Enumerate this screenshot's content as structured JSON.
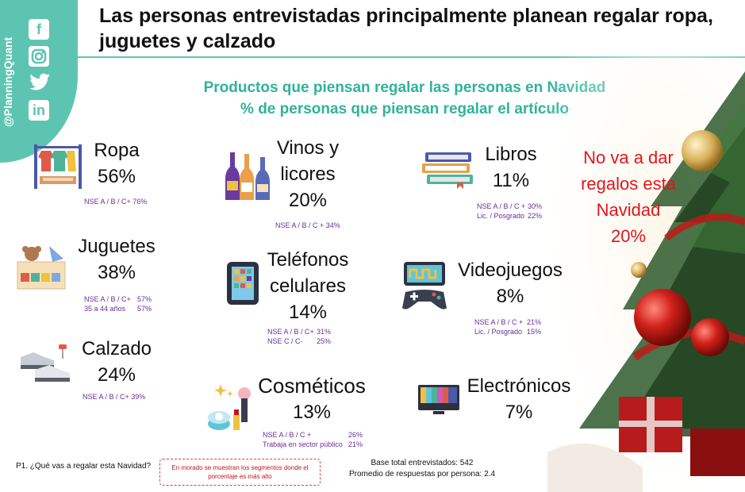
{
  "social": {
    "handle": "@PlanningQuant",
    "icons": [
      "facebook-icon",
      "instagram-icon",
      "twitter-icon",
      "linkedin-icon"
    ]
  },
  "title": "Las personas entrevistadas principalmente planean regalar ropa, juguetes y calzado",
  "subtitle_line1": "Productos que piensan regalar las personas en Navidad",
  "subtitle_line2": "% de personas que piensan regalar el artículo",
  "colors": {
    "accent": "#5ec4b2",
    "subtitle": "#2fb39a",
    "segments": "#6a2f96",
    "no_gift": "#e0161b"
  },
  "chart_data": {
    "type": "table",
    "title": "Productos que piensan regalar las personas en Navidad",
    "subtitle": "% de personas que piensan regalar el artículo",
    "categories": [
      "Ropa",
      "Juguetes",
      "Calzado",
      "Vinos y licores",
      "Teléfonos celulares",
      "Cosméticos",
      "Libros",
      "Videojuegos",
      "Electrónicos"
    ],
    "values": [
      56,
      38,
      24,
      20,
      14,
      13,
      11,
      8,
      7
    ],
    "no_gift": {
      "label": "No va a dar regalos esta Navidad",
      "value": 20
    }
  },
  "items": {
    "ropa": {
      "name": "Ropa",
      "pct": "56%",
      "seg1": "NSE A / B / C+  76%"
    },
    "juguetes": {
      "name": "Juguetes",
      "pct": "38%",
      "seg1_label": "NSE A / B / C+",
      "seg1_val": "57%",
      "seg2_label": "35 a 44 años",
      "seg2_val": "57%"
    },
    "calzado": {
      "name": "Calzado",
      "pct": "24%",
      "seg1": "NSE A / B / C+  39%"
    },
    "vinos": {
      "name1": "Vinos y",
      "name2": "licores",
      "pct": "20%",
      "seg1": "NSE A / B / C +   34%"
    },
    "telefonos": {
      "name1": "Teléfonos",
      "name2": "celulares",
      "pct": "14%",
      "seg1_label": "NSE A / B / C+",
      "seg1_val": "31%",
      "seg2_label": "NSE C / C-",
      "seg2_val": "25%"
    },
    "cosmeticos": {
      "name": "Cosméticos",
      "pct": "13%",
      "seg1_label": "NSE A / B / C +",
      "seg1_val": "26%",
      "seg2_label": "Trabaja en sector público",
      "seg2_val": "21%"
    },
    "libros": {
      "name": "Libros",
      "pct": "11%",
      "seg1_label": "NSE A / B / C +",
      "seg1_val": "30%",
      "seg2_label": "Lic. / Posgrado",
      "seg2_val": "22%"
    },
    "videojuegos": {
      "name": "Videojuegos",
      "pct": "8%",
      "seg1_label": "NSE A / B / C +",
      "seg1_val": "21%",
      "seg2_label": "Lic. / Posgrado",
      "seg2_val": "15%"
    },
    "electronicos": {
      "name": "Electrónicos",
      "pct": "7%"
    }
  },
  "no_gift": {
    "line1": "No va a dar",
    "line2": "regalos esta",
    "line3": "Navidad",
    "pct": "20%"
  },
  "footer": {
    "question": "P1. ¿Qué vas a regalar esta Navidad?",
    "note_line1": "En morado se muestran los segmentos donde el",
    "note_line2": "porcentaje es más alto",
    "base": "Base total entrevistados: 542",
    "avg": "Promedio de respuestas por persona: 2.4"
  }
}
